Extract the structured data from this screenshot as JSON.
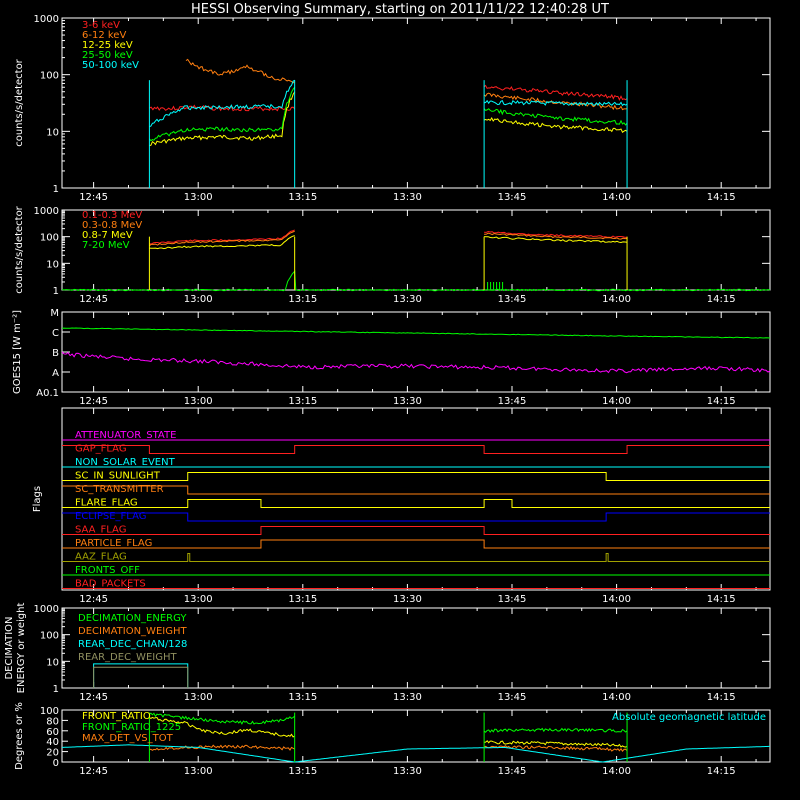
{
  "title": "HESSI Observing Summary, starting on 2011/11/22 12:40:28 UT",
  "colors": {
    "background": "#000000",
    "frame": "#ffffff",
    "red": "#ff2020",
    "orange": "#ff7f10",
    "yellow": "#ffff00",
    "green": "#00ff00",
    "cyan": "#00ffff",
    "magenta": "#ff00ff",
    "blue": "#0000ff",
    "olive": "#a0a000",
    "grey_olive": "#909060"
  },
  "time_ticks": [
    "12:45",
    "13:00",
    "13:15",
    "13:30",
    "13:45",
    "14:00",
    "14:15"
  ],
  "chart_data": [
    {
      "id": "count_rates",
      "type": "line",
      "ylabel": "counts/s/detector",
      "yscale": "log",
      "ylim": [
        1,
        1000
      ],
      "yticks": [
        "1",
        "10",
        "100",
        "1000"
      ],
      "xlim": [
        "12:40:28",
        "14:22"
      ],
      "legend": "top-left",
      "series": [
        {
          "name": "3-6 keV",
          "color": "#ff2020",
          "segments": [
            {
              "x": [
                "12:53",
                "12:53:30",
                "12:56",
                "12:59",
                "13:03",
                "13:07",
                "13:10",
                "13:13:50"
              ],
              "y": [
                25,
                26,
                25,
                27,
                25,
                25,
                25,
                25
              ]
            },
            {
              "x": [
                "13:41",
                "13:46",
                "13:52",
                "13:58",
                "14:01:30"
              ],
              "y": [
                60,
                55,
                47,
                42,
                38
              ]
            }
          ]
        },
        {
          "name": "6-12 keV",
          "color": "#ff7f10",
          "segments": [
            {
              "x": [
                "12:58:15",
                "12:59",
                "13:01",
                "13:03",
                "13:05",
                "13:07",
                "13:09",
                "13:11",
                "13:13:50"
              ],
              "y": [
                180,
                160,
                120,
                100,
                115,
                140,
                110,
                85,
                75
              ]
            },
            {
              "x": [
                "13:41",
                "13:46",
                "13:52",
                "13:58",
                "14:01:30"
              ],
              "y": [
                45,
                38,
                32,
                28,
                25
              ]
            }
          ]
        },
        {
          "name": "12-25 keV",
          "color": "#ffff00",
          "segments": [
            {
              "x": [
                "12:53",
                "12:58",
                "13:03",
                "13:08",
                "13:12",
                "13:13:50"
              ],
              "y": [
                6,
                7.5,
                8,
                7.5,
                8.5,
                50
              ]
            },
            {
              "x": [
                "13:41",
                "13:46",
                "13:52",
                "13:58",
                "14:01:30"
              ],
              "y": [
                17,
                14,
                12,
                11,
                10
              ]
            }
          ]
        },
        {
          "name": "25-50 keV",
          "color": "#00ff00",
          "segments": [
            {
              "x": [
                "12:53",
                "12:58",
                "13:03",
                "13:08",
                "13:12",
                "13:13:50"
              ],
              "y": [
                7,
                10.5,
                11,
                10.5,
                11,
                60
              ]
            },
            {
              "x": [
                "13:41",
                "13:46",
                "13:52",
                "13:58",
                "14:01:30"
              ],
              "y": [
                24,
                20,
                17,
                15,
                14
              ]
            }
          ]
        },
        {
          "name": "50-100 keV",
          "color": "#00ffff",
          "segments": [
            {
              "x": [
                "12:53",
                "12:58",
                "13:03",
                "13:08",
                "13:12",
                "13:13:50"
              ],
              "y": [
                12,
                26,
                27,
                27,
                28,
                80
              ]
            },
            {
              "x": [
                "13:41",
                "13:46",
                "13:52",
                "13:58",
                "14:01:30"
              ],
              "y": [
                32,
                32,
                31,
                30,
                30
              ]
            }
          ]
        }
      ]
    },
    {
      "id": "high_energy_rates",
      "type": "line",
      "ylabel": "counts/s/detector",
      "yscale": "log",
      "ylim": [
        1,
        1000
      ],
      "yticks": [
        "1",
        "10",
        "100",
        "1000"
      ],
      "legend": "top-left",
      "series": [
        {
          "name": "0.1-0.3 MeV",
          "color": "#ff2020",
          "segments": [
            {
              "x": [
                "12:53",
                "12:58",
                "13:05",
                "13:12",
                "13:13:50"
              ],
              "y": [
                55,
                70,
                75,
                85,
                180
              ]
            },
            {
              "x": [
                "13:41",
                "13:50",
                "14:01:30"
              ],
              "y": [
                150,
                115,
                95
              ]
            }
          ]
        },
        {
          "name": "0.3-0.8 MeV",
          "color": "#ff7f10",
          "segments": [
            {
              "x": [
                "12:53",
                "12:58",
                "13:05",
                "13:12",
                "13:13:50"
              ],
              "y": [
                48,
                62,
                68,
                75,
                160
              ]
            },
            {
              "x": [
                "13:41",
                "13:50",
                "14:01:30"
              ],
              "y": [
                130,
                100,
                85
              ]
            }
          ]
        },
        {
          "name": "0.8-7 MeV",
          "color": "#ffff00",
          "segments": [
            {
              "x": [
                "12:53",
                "12:58",
                "13:05",
                "13:12",
                "13:13:50"
              ],
              "y": [
                35,
                42,
                45,
                48,
                110
              ]
            },
            {
              "x": [
                "13:41",
                "13:50",
                "14:01:30"
              ],
              "y": [
                95,
                75,
                62
              ]
            }
          ]
        },
        {
          "name": "7-20 MeV",
          "color": "#00ff00",
          "segments": [
            {
              "x": [
                "12:40:28",
                "13:12:30",
                "13:13:50",
                "13:14",
                "14:22"
              ],
              "y": [
                1,
                1,
                5,
                1,
                1
              ]
            }
          ]
        }
      ]
    },
    {
      "id": "goes",
      "type": "line",
      "ylabel": "GOES15 [W m⁻²]",
      "ytick_labels": [
        "A0.1",
        "A",
        "B",
        "C",
        "M"
      ],
      "series": [
        {
          "color": "#00ff00",
          "x": [
            "12:40:28",
            "13:00",
            "13:30",
            "14:00",
            "14:22"
          ],
          "y_level": [
            3.2,
            3.1,
            2.95,
            2.8,
            2.7
          ]
        },
        {
          "color": "#ff00ff",
          "x": [
            "12:40:28",
            "12:50",
            "13:00",
            "13:15",
            "13:30",
            "13:45",
            "14:00",
            "14:15",
            "14:22"
          ],
          "y_level": [
            1.9,
            1.65,
            1.55,
            1.25,
            1.3,
            1.2,
            1.05,
            1.2,
            1.05
          ]
        }
      ]
    },
    {
      "id": "flags",
      "type": "line",
      "ylabel": "Flags",
      "series": [
        {
          "name": "ATTENUATOR_STATE",
          "color": "#ff00ff",
          "transitions": []
        },
        {
          "name": "GAP_FLAG",
          "color": "#ff2020",
          "transitions": [
            "12:53",
            "13:13:50",
            "13:41",
            "14:01:30"
          ],
          "start_high": true
        },
        {
          "name": "NON_SOLAR_EVENT",
          "color": "#00ffff",
          "transitions": []
        },
        {
          "name": "SC_IN_SUNLIGHT",
          "color": "#ffff00",
          "transitions": [
            "12:58:30",
            "13:58:30"
          ],
          "start_high": false
        },
        {
          "name": "SC_TRANSMITTER",
          "color": "#ff7f10",
          "transitions": [
            "12:58:30"
          ],
          "start_high": true
        },
        {
          "name": "FLARE_FLAG",
          "color": "#ffff00",
          "transitions": [
            "12:58:30",
            "13:09",
            "13:41",
            "13:45"
          ],
          "start_high": false
        },
        {
          "name": "ECLIPSE_FLAG",
          "color": "#0000ff",
          "transitions": [
            "12:58:30",
            "13:58:30"
          ],
          "start_high": true
        },
        {
          "name": "SAA_FLAG",
          "color": "#ff2020",
          "transitions": [
            "13:09",
            "13:41"
          ],
          "start_high": false
        },
        {
          "name": "PARTICLE_FLAG",
          "color": "#ff7f10",
          "transitions": [
            "13:09",
            "13:41"
          ],
          "start_high": false
        },
        {
          "name": "AAZ_FLAG",
          "color": "#a0a000",
          "spikes": [
            "12:58:30",
            "13:58:30"
          ]
        },
        {
          "name": "FRONTS_OFF",
          "color": "#00ff00",
          "transitions": []
        },
        {
          "name": "BAD_PACKETS",
          "color": "#ff2020",
          "transitions": []
        }
      ]
    },
    {
      "id": "decimation",
      "type": "line",
      "ylabel": "DECIMATION ENERGY or weight",
      "yscale": "log",
      "ylim": [
        1,
        1000
      ],
      "yticks": [
        "1",
        "10",
        "100",
        "1000"
      ],
      "legend": "top-left",
      "series": [
        {
          "name": "DECIMATION_ENERGY",
          "color": "#00ff00"
        },
        {
          "name": "DECIMATION_WEIGHT",
          "color": "#ff7f10"
        },
        {
          "name": "REAR_DEC_CHAN/128",
          "color": "#00ffff",
          "x": [
            "12:45",
            "12:58:30"
          ],
          "y": [
            8,
            8
          ]
        },
        {
          "name": "REAR_DEC_WEIGHT",
          "color": "#909060",
          "x": [
            "12:45",
            "12:58:30"
          ],
          "y": [
            6,
            6
          ]
        }
      ]
    },
    {
      "id": "ratios",
      "type": "line",
      "ylabel": "Degrees or %",
      "ylim": [
        0,
        100
      ],
      "yticks": [
        "0",
        "20",
        "40",
        "60",
        "80",
        "100"
      ],
      "legend": "top-left",
      "annotation": "Absolute geomagnetic latitude",
      "series": [
        {
          "name": "FRONT_RATIO",
          "color": "#ffff00",
          "segments": [
            {
              "x": [
                "12:53",
                "12:58",
                "13:01",
                "13:04",
                "13:07",
                "13:10",
                "13:13:50"
              ],
              "y": [
                85,
                75,
                60,
                55,
                62,
                55,
                50
              ]
            },
            {
              "x": [
                "13:41",
                "13:50",
                "13:58",
                "14:01:30"
              ],
              "y": [
                38,
                36,
                33,
                30
              ]
            }
          ]
        },
        {
          "name": "FRONT_RATIO_1225",
          "color": "#00ff00",
          "segments": [
            {
              "x": [
                "12:53",
                "12:58",
                "13:03",
                "13:08",
                "13:12",
                "13:13:50"
              ],
              "y": [
                92,
                85,
                78,
                75,
                80,
                88
              ]
            },
            {
              "x": [
                "13:41",
                "13:50",
                "13:58",
                "14:01:30"
              ],
              "y": [
                60,
                62,
                61,
                60
              ]
            }
          ]
        },
        {
          "name": "MAX_DET_VS_TOT",
          "color": "#ff7f10",
          "segments": [
            {
              "x": [
                "12:53",
                "12:58",
                "13:05",
                "13:10",
                "13:13:50"
              ],
              "y": [
                25,
                28,
                30,
                28,
                25
              ]
            },
            {
              "x": [
                "13:41",
                "13:50",
                "13:58",
                "14:01:30"
              ],
              "y": [
                30,
                28,
                25,
                22
              ]
            }
          ]
        },
        {
          "name": "Absolute geomagnetic latitude",
          "color": "#00ffff",
          "x": [
            "12:40:28",
            "12:50",
            "13:00",
            "13:13:50",
            "13:30",
            "13:44",
            "13:58",
            "14:10",
            "14:22"
          ],
          "y": [
            28,
            33,
            28,
            0,
            25,
            28,
            0,
            25,
            30
          ]
        }
      ]
    }
  ]
}
